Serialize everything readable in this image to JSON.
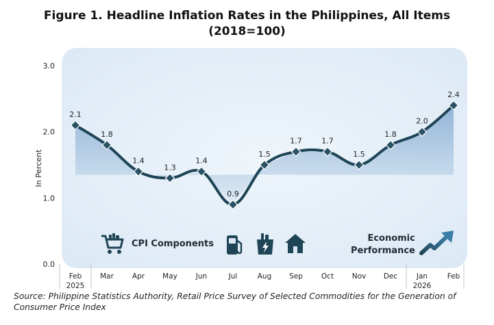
{
  "title": {
    "line1": "Figure 1. Headline Inflation Rates in the Philippines, All Items",
    "line2": "(2018=100)"
  },
  "source": {
    "label": "Source:",
    "text": "Philippine Statistics Authority, Retail Price Survey of Selected Commodities for the Generation of Consumer Price Index"
  },
  "legend": {
    "cpi_components": "CPI Components",
    "economic_performance_line1": "Economic",
    "economic_performance_line2": "Performance",
    "icons": [
      "shopping-cart-icon",
      "fuel-pump-icon",
      "grocery-bag-icon",
      "house-icon",
      "trend-up-arrow-icon"
    ]
  },
  "colors": {
    "line": "#1e4456",
    "marker": "#2a5264",
    "panel": "#e3eef7",
    "area_top": "#6f9cc9",
    "area_bottom": "#dce9f5",
    "axis_text": "#222222",
    "separator": "#b9c6d2"
  },
  "chart_data": {
    "type": "line",
    "title": "Figure 1. Headline Inflation Rates in the Philippines, All Items (2018=100)",
    "ylabel": "In Percent",
    "ylim": [
      0.0,
      3.0
    ],
    "yticks": [
      "0.0",
      "1.0",
      "2.0",
      "3.0"
    ],
    "categories": [
      [
        "Feb",
        "2025"
      ],
      [
        "Mar"
      ],
      [
        "Apr"
      ],
      [
        "May"
      ],
      [
        "Jun"
      ],
      [
        "Jul"
      ],
      [
        "Aug"
      ],
      [
        "Sep"
      ],
      [
        "Oct"
      ],
      [
        "Nov"
      ],
      [
        "Dec"
      ],
      [
        "Jan",
        "2026"
      ],
      [
        "Feb"
      ]
    ],
    "values": [
      2.1,
      1.8,
      1.4,
      1.3,
      1.4,
      0.9,
      1.5,
      1.7,
      1.7,
      1.5,
      1.8,
      2.0,
      2.4
    ],
    "data_labels": [
      "2.1",
      "1.8",
      "1.4",
      "1.3",
      "1.4",
      "0.9",
      "1.5",
      "1.7",
      "1.7",
      "1.5",
      "1.8",
      "2.0",
      "2.4"
    ],
    "year_separators_after": [
      0,
      10
    ],
    "grid": false,
    "legend": "none"
  }
}
